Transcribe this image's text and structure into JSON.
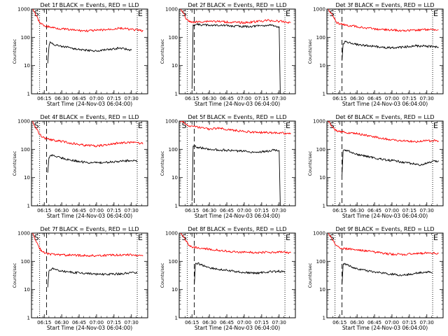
{
  "figure": {
    "xlabel": "Start Time (24-Nov-03 06:04:00)",
    "ylabel": "Counts/sec",
    "x_tick_labels": [
      "06:15",
      "06:30",
      "06:45",
      "07:00",
      "07:15",
      "07:30"
    ],
    "y_tick_labels": [
      "1",
      "10",
      "100",
      "1000"
    ],
    "start_marker": "S",
    "end_marker": "E"
  },
  "chart_data": [
    {
      "type": "line",
      "title": "Det 1f BLACK = Events, RED = LLD",
      "xlim": [
        "06:04",
        "07:44"
      ],
      "ylim": [
        1,
        1000
      ],
      "y_scale": "log",
      "marker_times": [
        "06:11",
        "06:17",
        "07:35"
      ],
      "series": [
        {
          "name": "Events",
          "color": "#000000",
          "x": [
            "06:18",
            "06:19",
            "06:20",
            "06:22",
            "06:25",
            "06:30",
            "06:40",
            "06:50",
            "07:00",
            "07:10",
            "07:20",
            "07:30"
          ],
          "y": [
            12,
            45,
            70,
            60,
            52,
            48,
            40,
            35,
            33,
            36,
            42,
            35
          ]
        },
        {
          "name": "LLD",
          "color": "#ff0000",
          "x": [
            "06:05",
            "06:08",
            "06:10",
            "06:12",
            "06:15",
            "06:20",
            "06:30",
            "06:40",
            "06:50",
            "07:00",
            "07:10",
            "07:20",
            "07:30",
            "07:40"
          ],
          "y": [
            1000,
            600,
            400,
            300,
            260,
            230,
            200,
            180,
            170,
            175,
            190,
            210,
            190,
            170
          ]
        }
      ]
    },
    {
      "type": "line",
      "title": "Det 2f BLACK = Events, RED = LLD",
      "xlim": [
        "06:04",
        "07:44"
      ],
      "ylim": [
        1,
        1000
      ],
      "y_scale": "log",
      "marker_times": [
        "06:11",
        "06:17",
        "07:35"
      ],
      "series": [
        {
          "name": "Events",
          "color": "#000000",
          "x": [
            "06:15",
            "06:16",
            "06:20",
            "06:30",
            "06:40",
            "06:50",
            "07:00",
            "07:10",
            "07:20",
            "07:25",
            "07:30",
            "07:31"
          ],
          "y": [
            1.5,
            280,
            280,
            270,
            270,
            250,
            240,
            250,
            270,
            250,
            240,
            1
          ]
        },
        {
          "name": "LLD",
          "color": "#ff0000",
          "x": [
            "06:05",
            "06:08",
            "06:10",
            "06:13",
            "06:20",
            "06:30",
            "06:40",
            "06:50",
            "07:00",
            "07:10",
            "07:20",
            "07:30",
            "07:40"
          ],
          "y": [
            1000,
            700,
            450,
            350,
            350,
            380,
            360,
            340,
            330,
            360,
            400,
            370,
            330
          ]
        }
      ]
    },
    {
      "type": "line",
      "title": "Det 3f BLACK = Events, RED = LLD",
      "xlim": [
        "06:04",
        "07:44"
      ],
      "ylim": [
        1,
        1000
      ],
      "y_scale": "log",
      "marker_times": [
        "06:11",
        "06:17",
        "07:35"
      ],
      "series": [
        {
          "name": "Events",
          "color": "#000000",
          "x": [
            "06:17",
            "06:18",
            "06:20",
            "06:25",
            "06:30",
            "06:40",
            "06:50",
            "07:00",
            "07:10",
            "07:20",
            "07:30",
            "07:40"
          ],
          "y": [
            15,
            60,
            70,
            60,
            55,
            50,
            45,
            42,
            45,
            50,
            48,
            45
          ]
        },
        {
          "name": "LLD",
          "color": "#ff0000",
          "x": [
            "06:05",
            "06:08",
            "06:10",
            "06:12",
            "06:15",
            "06:20",
            "06:30",
            "06:40",
            "06:50",
            "07:00",
            "07:10",
            "07:20",
            "07:30",
            "07:40"
          ],
          "y": [
            1000,
            700,
            500,
            350,
            300,
            270,
            240,
            210,
            190,
            180,
            175,
            180,
            190,
            185
          ]
        }
      ]
    },
    {
      "type": "line",
      "title": "Det 4f BLACK = Events, RED = LLD",
      "xlim": [
        "06:04",
        "07:44"
      ],
      "ylim": [
        1,
        1000
      ],
      "y_scale": "log",
      "marker_times": [
        "06:11",
        "06:17",
        "07:35"
      ],
      "series": [
        {
          "name": "Events",
          "color": "#000000",
          "x": [
            "06:18",
            "06:19",
            "06:22",
            "06:25",
            "06:30",
            "06:40",
            "06:50",
            "07:00",
            "07:10",
            "07:20",
            "07:30",
            "07:35"
          ],
          "y": [
            15,
            50,
            65,
            55,
            50,
            40,
            35,
            33,
            35,
            38,
            40,
            38
          ]
        },
        {
          "name": "LLD",
          "color": "#ff0000",
          "x": [
            "06:05",
            "06:08",
            "06:10",
            "06:12",
            "06:15",
            "06:20",
            "06:30",
            "06:40",
            "06:50",
            "07:00",
            "07:10",
            "07:20",
            "07:30",
            "07:40"
          ],
          "y": [
            1000,
            550,
            400,
            300,
            250,
            220,
            190,
            160,
            140,
            130,
            150,
            170,
            175,
            160
          ]
        }
      ]
    },
    {
      "type": "line",
      "title": "Det 5f BLACK = Events, RED = LLD",
      "xlim": [
        "06:04",
        "07:44"
      ],
      "ylim": [
        1,
        1000
      ],
      "y_scale": "log",
      "marker_times": [
        "06:11",
        "06:17",
        "07:35"
      ],
      "series": [
        {
          "name": "Events",
          "color": "#000000",
          "x": [
            "06:15",
            "06:16",
            "06:20",
            "06:30",
            "06:40",
            "06:50",
            "07:00",
            "07:10",
            "07:20",
            "07:25",
            "07:30",
            "07:31"
          ],
          "y": [
            1.5,
            130,
            120,
            100,
            95,
            90,
            85,
            80,
            85,
            95,
            90,
            1
          ]
        },
        {
          "name": "LLD",
          "color": "#ff0000",
          "x": [
            "06:05",
            "06:08",
            "06:10",
            "06:13",
            "06:20",
            "06:30",
            "06:40",
            "06:50",
            "07:00",
            "07:10",
            "07:20",
            "07:30",
            "07:40"
          ],
          "y": [
            1000,
            900,
            750,
            650,
            600,
            520,
            560,
            480,
            430,
            400,
            390,
            380,
            370
          ]
        }
      ]
    },
    {
      "type": "line",
      "title": "Det 6f BLACK = Events, RED = LLD",
      "xlim": [
        "06:04",
        "07:44"
      ],
      "ylim": [
        1,
        1000
      ],
      "y_scale": "log",
      "marker_times": [
        "06:11",
        "06:17",
        "07:35"
      ],
      "series": [
        {
          "name": "Events",
          "color": "#000000",
          "x": [
            "06:17",
            "06:18",
            "06:20",
            "06:25",
            "06:30",
            "06:40",
            "06:50",
            "07:00",
            "07:10",
            "07:20",
            "07:25",
            "07:30",
            "07:40"
          ],
          "y": [
            12,
            90,
            95,
            80,
            65,
            55,
            45,
            40,
            35,
            30,
            28,
            32,
            40
          ]
        },
        {
          "name": "LLD",
          "color": "#ff0000",
          "x": [
            "06:05",
            "06:08",
            "06:10",
            "06:12",
            "06:15",
            "06:20",
            "06:30",
            "06:40",
            "06:50",
            "07:00",
            "07:10",
            "07:20",
            "07:30",
            "07:40"
          ],
          "y": [
            1000,
            700,
            550,
            450,
            420,
            400,
            360,
            300,
            250,
            220,
            200,
            190,
            200,
            200
          ]
        }
      ]
    },
    {
      "type": "line",
      "title": "Det 7f BLACK = Events, RED = LLD",
      "xlim": [
        "06:04",
        "07:44"
      ],
      "ylim": [
        1,
        1000
      ],
      "y_scale": "log",
      "marker_times": [
        "06:11",
        "06:17",
        "07:35"
      ],
      "series": [
        {
          "name": "Events",
          "color": "#000000",
          "x": [
            "06:18",
            "06:19",
            "06:22",
            "06:25",
            "06:30",
            "06:40",
            "06:50",
            "07:00",
            "07:10",
            "07:20",
            "07:30",
            "07:35"
          ],
          "y": [
            12,
            45,
            55,
            50,
            45,
            40,
            38,
            35,
            35,
            36,
            40,
            38
          ]
        },
        {
          "name": "LLD",
          "color": "#ff0000",
          "x": [
            "06:05",
            "06:08",
            "06:10",
            "06:12",
            "06:15",
            "06:20",
            "06:30",
            "06:40",
            "06:50",
            "07:00",
            "07:10",
            "07:20",
            "07:30",
            "07:40"
          ],
          "y": [
            1000,
            500,
            350,
            250,
            200,
            180,
            170,
            165,
            160,
            160,
            165,
            170,
            170,
            160
          ]
        }
      ]
    },
    {
      "type": "line",
      "title": "Det 8f BLACK = Events, RED = LLD",
      "xlim": [
        "06:04",
        "07:44"
      ],
      "ylim": [
        1,
        1000
      ],
      "y_scale": "log",
      "marker_times": [
        "06:11",
        "06:17",
        "07:35"
      ],
      "series": [
        {
          "name": "Events",
          "color": "#000000",
          "x": [
            "06:17",
            "06:18",
            "06:20",
            "06:25",
            "06:30",
            "06:40",
            "06:50",
            "07:00",
            "07:10",
            "07:20",
            "07:30",
            "07:35"
          ],
          "y": [
            15,
            80,
            85,
            70,
            60,
            50,
            45,
            40,
            38,
            42,
            45,
            40
          ]
        },
        {
          "name": "LLD",
          "color": "#ff0000",
          "x": [
            "06:05",
            "06:08",
            "06:10",
            "06:12",
            "06:15",
            "06:20",
            "06:30",
            "06:40",
            "06:50",
            "07:00",
            "07:10",
            "07:20",
            "07:30",
            "07:40"
          ],
          "y": [
            1000,
            700,
            500,
            380,
            320,
            300,
            270,
            240,
            220,
            210,
            205,
            210,
            215,
            200
          ]
        }
      ]
    },
    {
      "type": "line",
      "title": "Det 9f BLACK = Events, RED = LLD",
      "xlim": [
        "06:04",
        "07:44"
      ],
      "ylim": [
        1,
        1000
      ],
      "y_scale": "log",
      "marker_times": [
        "06:11",
        "06:17",
        "07:35"
      ],
      "series": [
        {
          "name": "Events",
          "color": "#000000",
          "x": [
            "06:17",
            "06:18",
            "06:20",
            "06:25",
            "06:30",
            "06:40",
            "06:50",
            "07:00",
            "07:10",
            "07:20",
            "07:30",
            "07:35"
          ],
          "y": [
            15,
            75,
            80,
            65,
            55,
            45,
            40,
            35,
            32,
            38,
            42,
            38
          ]
        },
        {
          "name": "LLD",
          "color": "#ff0000",
          "x": [
            "06:05",
            "06:08",
            "06:10",
            "06:12",
            "06:15",
            "06:20",
            "06:30",
            "06:40",
            "06:50",
            "07:00",
            "07:10",
            "07:20",
            "07:30",
            "07:40"
          ],
          "y": [
            1000,
            650,
            480,
            360,
            300,
            280,
            250,
            230,
            200,
            180,
            175,
            185,
            200,
            190
          ]
        }
      ]
    }
  ]
}
